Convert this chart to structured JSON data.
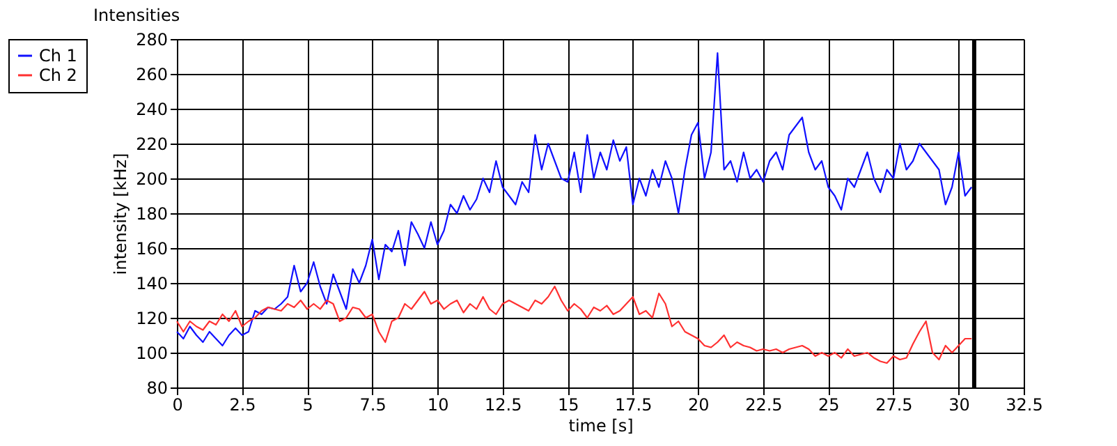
{
  "chart_data": {
    "type": "line",
    "title": "Intensities",
    "xlabel": "time [s]",
    "ylabel": "intensity [kHz]",
    "x": [
      0,
      0.25,
      0.5,
      0.75,
      1,
      1.25,
      1.5,
      1.75,
      2,
      2.25,
      2.5,
      2.75,
      3,
      3.25,
      3.5,
      3.75,
      4,
      4.25,
      4.5,
      4.75,
      5,
      5.25,
      5.5,
      5.75,
      6,
      6.25,
      6.5,
      6.75,
      7,
      7.25,
      7.5,
      7.75,
      8,
      8.25,
      8.5,
      8.75,
      9,
      9.25,
      9.5,
      9.75,
      10,
      10.25,
      10.5,
      10.75,
      11,
      11.25,
      11.5,
      11.75,
      12,
      12.25,
      12.5,
      12.75,
      13,
      13.25,
      13.5,
      13.75,
      14,
      14.25,
      14.5,
      14.75,
      15,
      15.25,
      15.5,
      15.75,
      16,
      16.25,
      16.5,
      16.75,
      17,
      17.25,
      17.5,
      17.75,
      18,
      18.25,
      18.5,
      18.75,
      19,
      19.25,
      19.5,
      19.75,
      20,
      20.25,
      20.5,
      20.75,
      21,
      21.25,
      21.5,
      21.75,
      22,
      22.25,
      22.5,
      22.75,
      23,
      23.25,
      23.5,
      23.75,
      24,
      24.25,
      24.5,
      24.75,
      25,
      25.25,
      25.5,
      25.75,
      26,
      26.25,
      26.5,
      26.75,
      27,
      27.25,
      27.5,
      27.75,
      28,
      28.25,
      28.5,
      28.75,
      29,
      29.25,
      29.5,
      29.75,
      30,
      30.25,
      30.5
    ],
    "series": [
      {
        "name": "Ch 1",
        "color": "#1010ff",
        "values": [
          112,
          108,
          115,
          110,
          106,
          112,
          108,
          104,
          110,
          114,
          110,
          112,
          124,
          122,
          126,
          125,
          128,
          132,
          150,
          135,
          140,
          152,
          138,
          128,
          145,
          135,
          125,
          148,
          140,
          150,
          165,
          142,
          162,
          158,
          170,
          150,
          175,
          168,
          160,
          175,
          162,
          170,
          185,
          180,
          190,
          182,
          188,
          200,
          192,
          210,
          195,
          190,
          185,
          198,
          192,
          225,
          205,
          220,
          210,
          200,
          198,
          215,
          192,
          225,
          200,
          215,
          205,
          222,
          210,
          218,
          185,
          200,
          190,
          205,
          195,
          210,
          200,
          180,
          205,
          225,
          232,
          200,
          215,
          272,
          205,
          210,
          198,
          215,
          200,
          205,
          198,
          210,
          215,
          205,
          225,
          230,
          235,
          215,
          205,
          210,
          195,
          190,
          182,
          200,
          195,
          205,
          215,
          200,
          192,
          205,
          200,
          220,
          205,
          210,
          220,
          215,
          210,
          205,
          185,
          195,
          215,
          190,
          195
        ]
      },
      {
        "name": "Ch 2",
        "color": "#ff3030",
        "values": [
          118,
          112,
          118,
          115,
          113,
          118,
          116,
          122,
          118,
          124,
          115,
          118,
          120,
          124,
          126,
          125,
          124,
          128,
          126,
          130,
          125,
          128,
          125,
          130,
          128,
          118,
          120,
          126,
          125,
          120,
          122,
          112,
          106,
          118,
          120,
          128,
          125,
          130,
          135,
          128,
          130,
          125,
          128,
          130,
          123,
          128,
          125,
          132,
          125,
          122,
          128,
          130,
          128,
          126,
          124,
          130,
          128,
          132,
          138,
          130,
          124,
          128,
          125,
          120,
          126,
          124,
          127,
          122,
          124,
          128,
          132,
          122,
          124,
          120,
          134,
          128,
          115,
          118,
          112,
          110,
          108,
          104,
          103,
          106,
          110,
          103,
          106,
          104,
          103,
          101,
          102,
          101,
          102,
          100,
          102,
          103,
          104,
          102,
          98,
          100,
          98,
          100,
          97,
          102,
          98,
          99,
          100,
          97,
          95,
          94,
          98,
          96,
          97,
          105,
          112,
          118,
          100,
          96,
          104,
          100,
          104,
          108,
          108
        ]
      }
    ],
    "xlim": [
      0,
      32.5
    ],
    "xticks": [
      0,
      2.5,
      5,
      7.5,
      10,
      12.5,
      15,
      17.5,
      20,
      22.5,
      25,
      27.5,
      30,
      32.5
    ],
    "ylim": [
      80,
      280
    ],
    "yticks": [
      80,
      100,
      120,
      140,
      160,
      180,
      200,
      220,
      240,
      260,
      280
    ],
    "ref_lines": [
      {
        "axis": "x",
        "value": 30.6,
        "color": "#000000"
      }
    ],
    "grid": true,
    "legend": "top left",
    "line_style": "solid"
  }
}
